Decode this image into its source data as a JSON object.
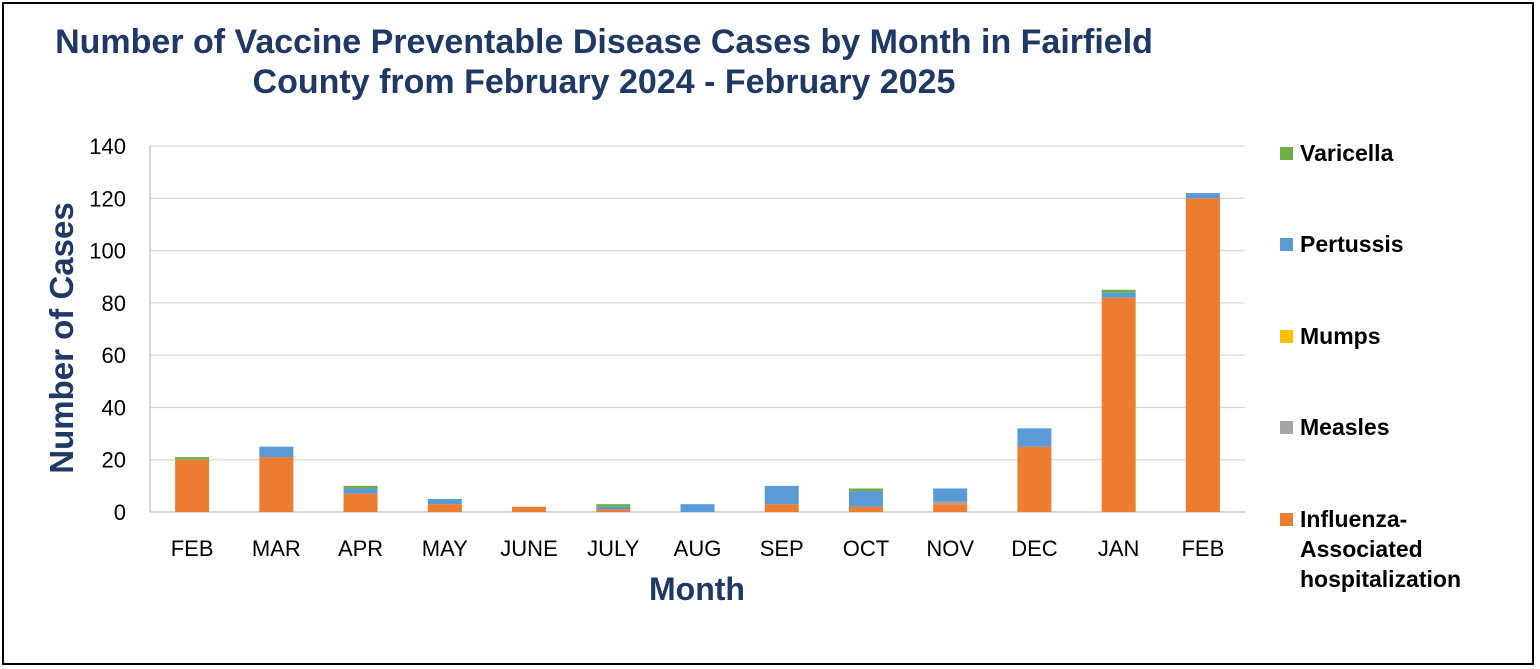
{
  "chart_data": {
    "type": "bar",
    "stacked": true,
    "title": "Number of Vaccine Preventable Disease Cases by Month in Fairfield\nCounty from February 2024 - February 2025",
    "xlabel": "Month",
    "ylabel": "Number of Cases",
    "ylim": [
      0,
      140
    ],
    "yticks": [
      0,
      20,
      40,
      60,
      80,
      100,
      120,
      140
    ],
    "grid": true,
    "legend_position": "right",
    "categories": [
      "FEB",
      "MAR",
      "APR",
      "MAY",
      "JUNE",
      "JULY",
      "AUG",
      "SEP",
      "OCT",
      "NOV",
      "DEC",
      "JAN",
      "FEB"
    ],
    "series": [
      {
        "name": "Influenza-Associated hospitalization",
        "legend_lines": [
          "Influenza-",
          "Associated",
          "hospitalization"
        ],
        "color": "#ed7d31",
        "values": [
          20,
          21,
          7,
          3,
          2,
          1,
          0,
          3,
          2,
          3,
          25,
          82,
          120
        ]
      },
      {
        "name": "Measles",
        "legend_lines": [
          "Measles"
        ],
        "color": "#a5a5a5",
        "values": [
          0,
          0,
          0,
          0,
          0,
          0,
          0,
          0,
          0,
          1,
          0,
          0,
          0
        ]
      },
      {
        "name": "Mumps",
        "legend_lines": [
          "Mumps"
        ],
        "color": "#ffc000",
        "values": [
          0,
          0,
          0,
          0,
          0,
          0,
          0,
          0,
          0,
          0,
          0,
          0,
          0
        ]
      },
      {
        "name": "Pertussis",
        "legend_lines": [
          "Pertussis"
        ],
        "color": "#5b9bd5",
        "values": [
          0,
          4,
          2,
          2,
          0,
          1,
          3,
          7,
          6,
          5,
          7,
          2,
          2
        ]
      },
      {
        "name": "Varicella",
        "legend_lines": [
          "Varicella"
        ],
        "color": "#70ad47",
        "values": [
          1,
          0,
          1,
          0,
          0,
          1,
          0,
          0,
          1,
          0,
          0,
          1,
          0
        ]
      }
    ],
    "colors": {
      "title": "#1f3864",
      "grid": "#d9d9d9",
      "axis": "#bfbfbf"
    }
  }
}
